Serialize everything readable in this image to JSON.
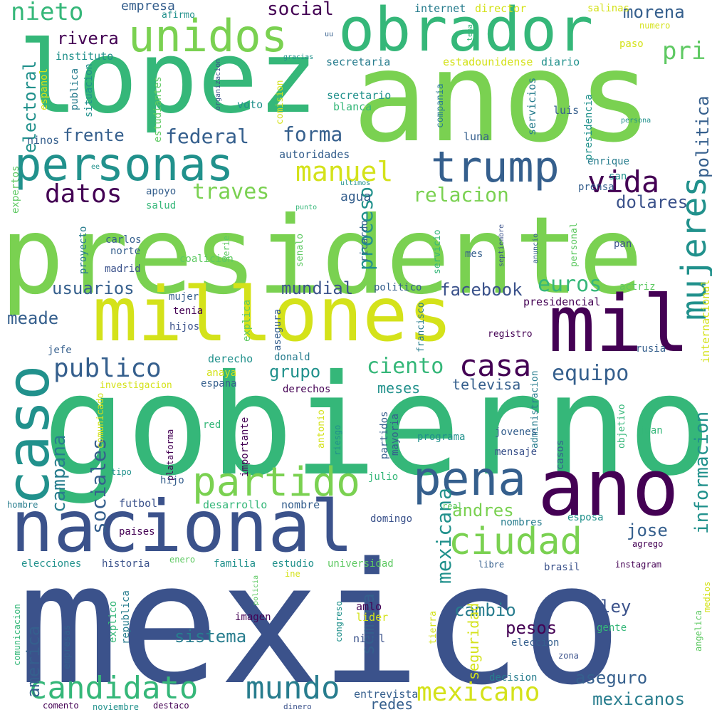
{
  "palette": {
    "purple": "#440154",
    "indigo": "#3b528b",
    "slate": "#355f8d",
    "teal": "#21918c",
    "teal_dark": "#287d8e",
    "green": "#35b779",
    "green_mid": "#5ec962",
    "lime": "#7ad151",
    "yellow": "#d4e21a"
  },
  "words": [
    "mexico",
    "gobierno",
    "presidente",
    "anos",
    "lopez",
    "millones",
    "nacional",
    "obrador",
    "mil",
    "ano",
    "unidos",
    "personas",
    "caso",
    "pena",
    "trump",
    "ciudad",
    "partido",
    "mujeres",
    "vida",
    "publico",
    "casa",
    "candidato",
    "mundo",
    "mexicano",
    "datos",
    "manuel",
    "nieto",
    "pri",
    "sociales",
    "campana",
    "informacion",
    "ciento",
    "equipo",
    "forma",
    "mexicana",
    "euros",
    "traves",
    "relacion",
    "proceso",
    "federal",
    "frente",
    "politica",
    "social",
    "rivera",
    "morena",
    "electoral",
    "dolares",
    "mundial",
    "grupo",
    "usuarios",
    "meade",
    "facebook",
    "sistema",
    "cambio",
    "pesos",
    "jose",
    "andres",
    "ley",
    "aseguro",
    "america",
    "mexicanos",
    "redes",
    "seguridad",
    "semana",
    "televisa",
    "meses",
    "internacional",
    "agua",
    "empresa",
    "salinas",
    "internet",
    "director",
    "instituto",
    "secretaria",
    "estadounidense",
    "diario",
    "secretario",
    "blanca",
    "servicios",
    "luis",
    "presidencia",
    "compania",
    "autoridades",
    "voto",
    "estudiantes",
    "publica",
    "situacion",
    "espanol",
    "ninos",
    "luna",
    "enrique",
    "san",
    "prensa",
    "apoyo",
    "salud",
    "carlos",
    "norte",
    "madrid",
    "coalicion",
    "proyecto",
    "expertos",
    "ricardo",
    "servicio",
    "personal",
    "pan",
    "mes",
    "senalo",
    "serie",
    "politico",
    "actriz",
    "presidencial",
    "mujer",
    "tenia",
    "hijos",
    "explica",
    "asegura",
    "francisco",
    "administracion",
    "registro",
    "jefe",
    "donald",
    "derecho",
    "rusia",
    "anaya",
    "espana",
    "investigacion",
    "derechos",
    "comunicado",
    "partidos",
    "mayoria",
    "antonio",
    "riesgo",
    "programa",
    "jovenes",
    "casos",
    "objetivo",
    "juan",
    "mensaje",
    "plataforma",
    "importante",
    "red",
    "tipo",
    "hijo",
    "futbol",
    "desarrollo",
    "nombre",
    "julio",
    "real",
    "hombre",
    "domingo",
    "nombres",
    "esposa",
    "paises",
    "agrego",
    "elecciones",
    "historia",
    "enero",
    "familia",
    "estudio",
    "universidad",
    "ine",
    "libre",
    "brasil",
    "instagram",
    "medios",
    "amlo",
    "lider",
    "imagen",
    "republica",
    "comunicacion",
    "explico",
    "empresas",
    "policia",
    "congreso",
    "tierra",
    "nivel",
    "gente",
    "eleccion",
    "angelica",
    "zona",
    "entrevista",
    "decision",
    "comento",
    "noviembre",
    "destaco",
    "dinero",
    "afirmo",
    "uu",
    "tema",
    "numero",
    "paso",
    "gracias",
    "organizacion",
    "comision",
    "ee",
    "ultimos",
    "punto",
    "septiembre",
    "anuncio",
    "persona"
  ]
}
